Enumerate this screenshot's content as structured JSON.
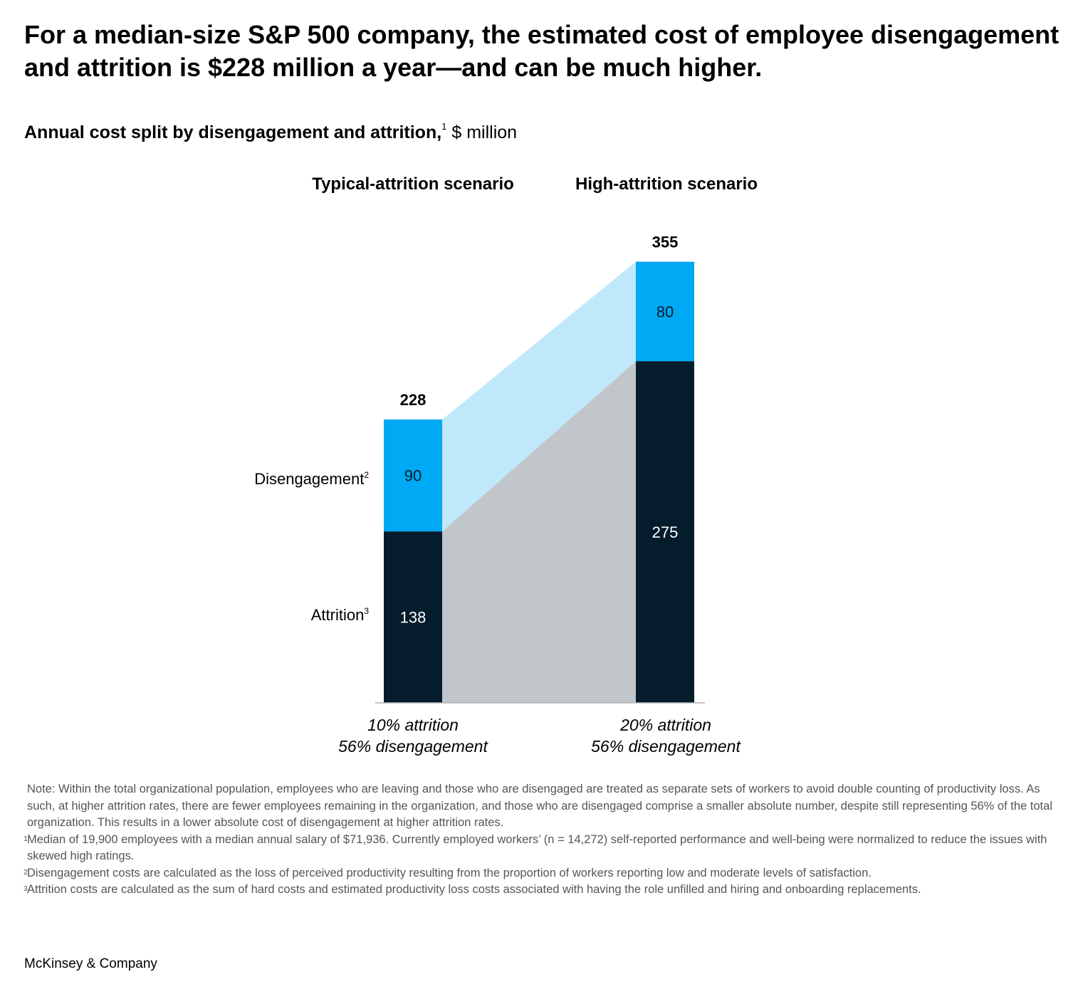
{
  "title": "For a median-size S&P 500 company, the estimated cost of employee disengagement and attrition is $228 million a year—and can be much higher.",
  "subtitle": {
    "main": "Annual cost split by disengagement and attrition,",
    "footnote_ref": "1",
    "unit": "$ million"
  },
  "colors": {
    "disengagement": "#00a9f4",
    "attrition": "#051c2c",
    "disengagement_connector": "#c0e8fb",
    "attrition_connector": "#c1c6cb",
    "axis": "#b3b3b3"
  },
  "chart_data": {
    "type": "bar",
    "stacked": true,
    "categories": [
      "Typical-attrition scenario",
      "High-attrition scenario"
    ],
    "category_subtitles": [
      [
        "10% attrition",
        "56% disengagement"
      ],
      [
        "20% attrition",
        "56% disengagement"
      ]
    ],
    "series": [
      {
        "name": "Attrition",
        "footnote_ref": "3",
        "values": [
          138,
          275
        ]
      },
      {
        "name": "Disengagement",
        "footnote_ref": "2",
        "values": [
          90,
          80
        ]
      }
    ],
    "totals": [
      228,
      355
    ],
    "connectors": true,
    "legend": "row labels left of first bar",
    "grid": false
  },
  "notes": [
    {
      "ref": "",
      "text": "Note: Within the total organizational population, employees who are leaving and those who are disengaged are treated as separate sets of workers to avoid double counting of productivity loss. As such, at higher attrition rates, there are fewer employees remaining in the organization, and those who are disengaged comprise a smaller absolute number, despite still representing 56% of the total organization. This results in a lower absolute cost of disengagement at higher attrition rates."
    },
    {
      "ref": "1",
      "text": "Median of 19,900 employees with a median annual salary of $71,936. Currently employed workers’ (n = 14,272) self-reported performance and well-being were normalized to reduce the issues with skewed high ratings."
    },
    {
      "ref": "2",
      "text": "Disengagement costs are calculated as the loss of perceived productivity resulting from the proportion of workers reporting low and moderate levels of satisfaction."
    },
    {
      "ref": "3",
      "text": "Attrition costs are calculated as the sum of hard costs and estimated productivity loss costs associated with having the role unfilled and hiring and onboarding replacements."
    }
  ],
  "brand": "McKinsey & Company"
}
